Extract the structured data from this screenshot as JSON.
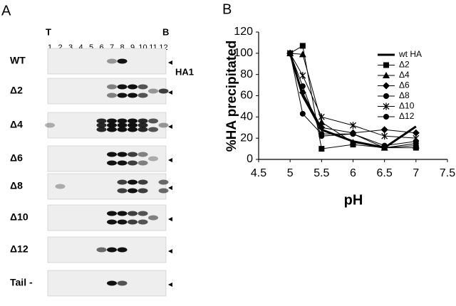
{
  "panel_a": {
    "label": "A",
    "top_label": "T",
    "bottom_label": "B",
    "lanes": [
      "1",
      "2",
      "3",
      "4",
      "5",
      "6",
      "7",
      "8",
      "9",
      "10",
      "11",
      "12"
    ],
    "rows": [
      "WT",
      "Δ2",
      "Δ4",
      "Δ6",
      "Δ8",
      "Δ10",
      "Δ12",
      "Tail -"
    ],
    "band_label": "HA1"
  },
  "chart_data": {
    "type": "line",
    "panel_label": "B",
    "xlabel": "pH",
    "ylabel": "%HA precipitated",
    "x": [
      5,
      5.2,
      5.5,
      6,
      6.5,
      7
    ],
    "series": [
      {
        "name": "wt HA",
        "color": "#000000",
        "marker": "none",
        "values": [
          100,
          60,
          28,
          17,
          11,
          31
        ]
      },
      {
        "name": "Δ2",
        "color": "#000000",
        "marker": "square",
        "values": [
          100,
          107,
          10,
          14,
          11,
          11
        ]
      },
      {
        "name": "Δ4",
        "color": "#000000",
        "marker": "triangle",
        "values": [
          100,
          99,
          35,
          16,
          11,
          13
        ]
      },
      {
        "name": "Δ6",
        "color": "#000000",
        "marker": "diamond",
        "values": [
          100,
          63,
          30,
          25,
          28,
          25
        ]
      },
      {
        "name": "Δ8",
        "color": "#000000",
        "marker": "circle",
        "values": [
          100,
          43,
          24,
          24,
          11,
          15
        ]
      },
      {
        "name": "Δ10",
        "color": "#000000",
        "marker": "asterisk",
        "values": [
          100,
          79,
          40,
          32,
          22,
          20
        ]
      },
      {
        "name": "Δ12",
        "color": "#000000",
        "marker": "circle",
        "values": [
          100,
          69,
          22,
          24,
          13,
          17
        ]
      }
    ],
    "xlim": [
      4.5,
      7.5
    ],
    "xticks": [
      4.5,
      5,
      5.5,
      6,
      6.5,
      7,
      7.5
    ],
    "ylim": [
      0,
      120
    ],
    "yticks": [
      0,
      20,
      40,
      60,
      80,
      100,
      120
    ]
  }
}
